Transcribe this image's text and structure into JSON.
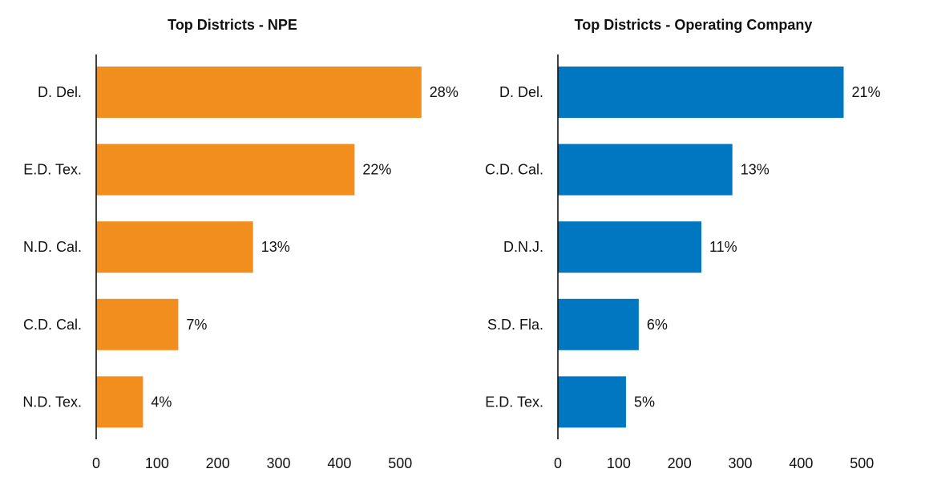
{
  "chart_data": [
    {
      "type": "bar",
      "orientation": "horizontal",
      "title": "Top Districts - NPE",
      "categories": [
        "D. Del.",
        "E.D. Tex.",
        "N.D. Cal.",
        "C.D. Cal.",
        "N.D. Tex."
      ],
      "values": [
        535,
        425,
        258,
        135,
        77
      ],
      "data_labels": [
        "28%",
        "22%",
        "13%",
        "7%",
        "4%"
      ],
      "xlim": [
        0,
        560
      ],
      "xticks": [
        0,
        100,
        200,
        300,
        400,
        500
      ],
      "xlabel": "",
      "ylabel": "",
      "color": "#F28E1E",
      "grid": false,
      "legend": "none"
    },
    {
      "type": "bar",
      "orientation": "horizontal",
      "title": "Top Districts - Operating Company",
      "categories": [
        "D. Del.",
        "C.D. Cal.",
        "D.N.J.",
        "S.D. Fla.",
        "E.D. Tex."
      ],
      "values": [
        470,
        287,
        236,
        133,
        112
      ],
      "data_labels": [
        "21%",
        "13%",
        "11%",
        "6%",
        "5%"
      ],
      "xlim": [
        0,
        560
      ],
      "xticks": [
        0,
        100,
        200,
        300,
        400,
        500
      ],
      "xlabel": "",
      "ylabel": "",
      "color": "#0077C0",
      "grid": false,
      "legend": "none"
    }
  ]
}
